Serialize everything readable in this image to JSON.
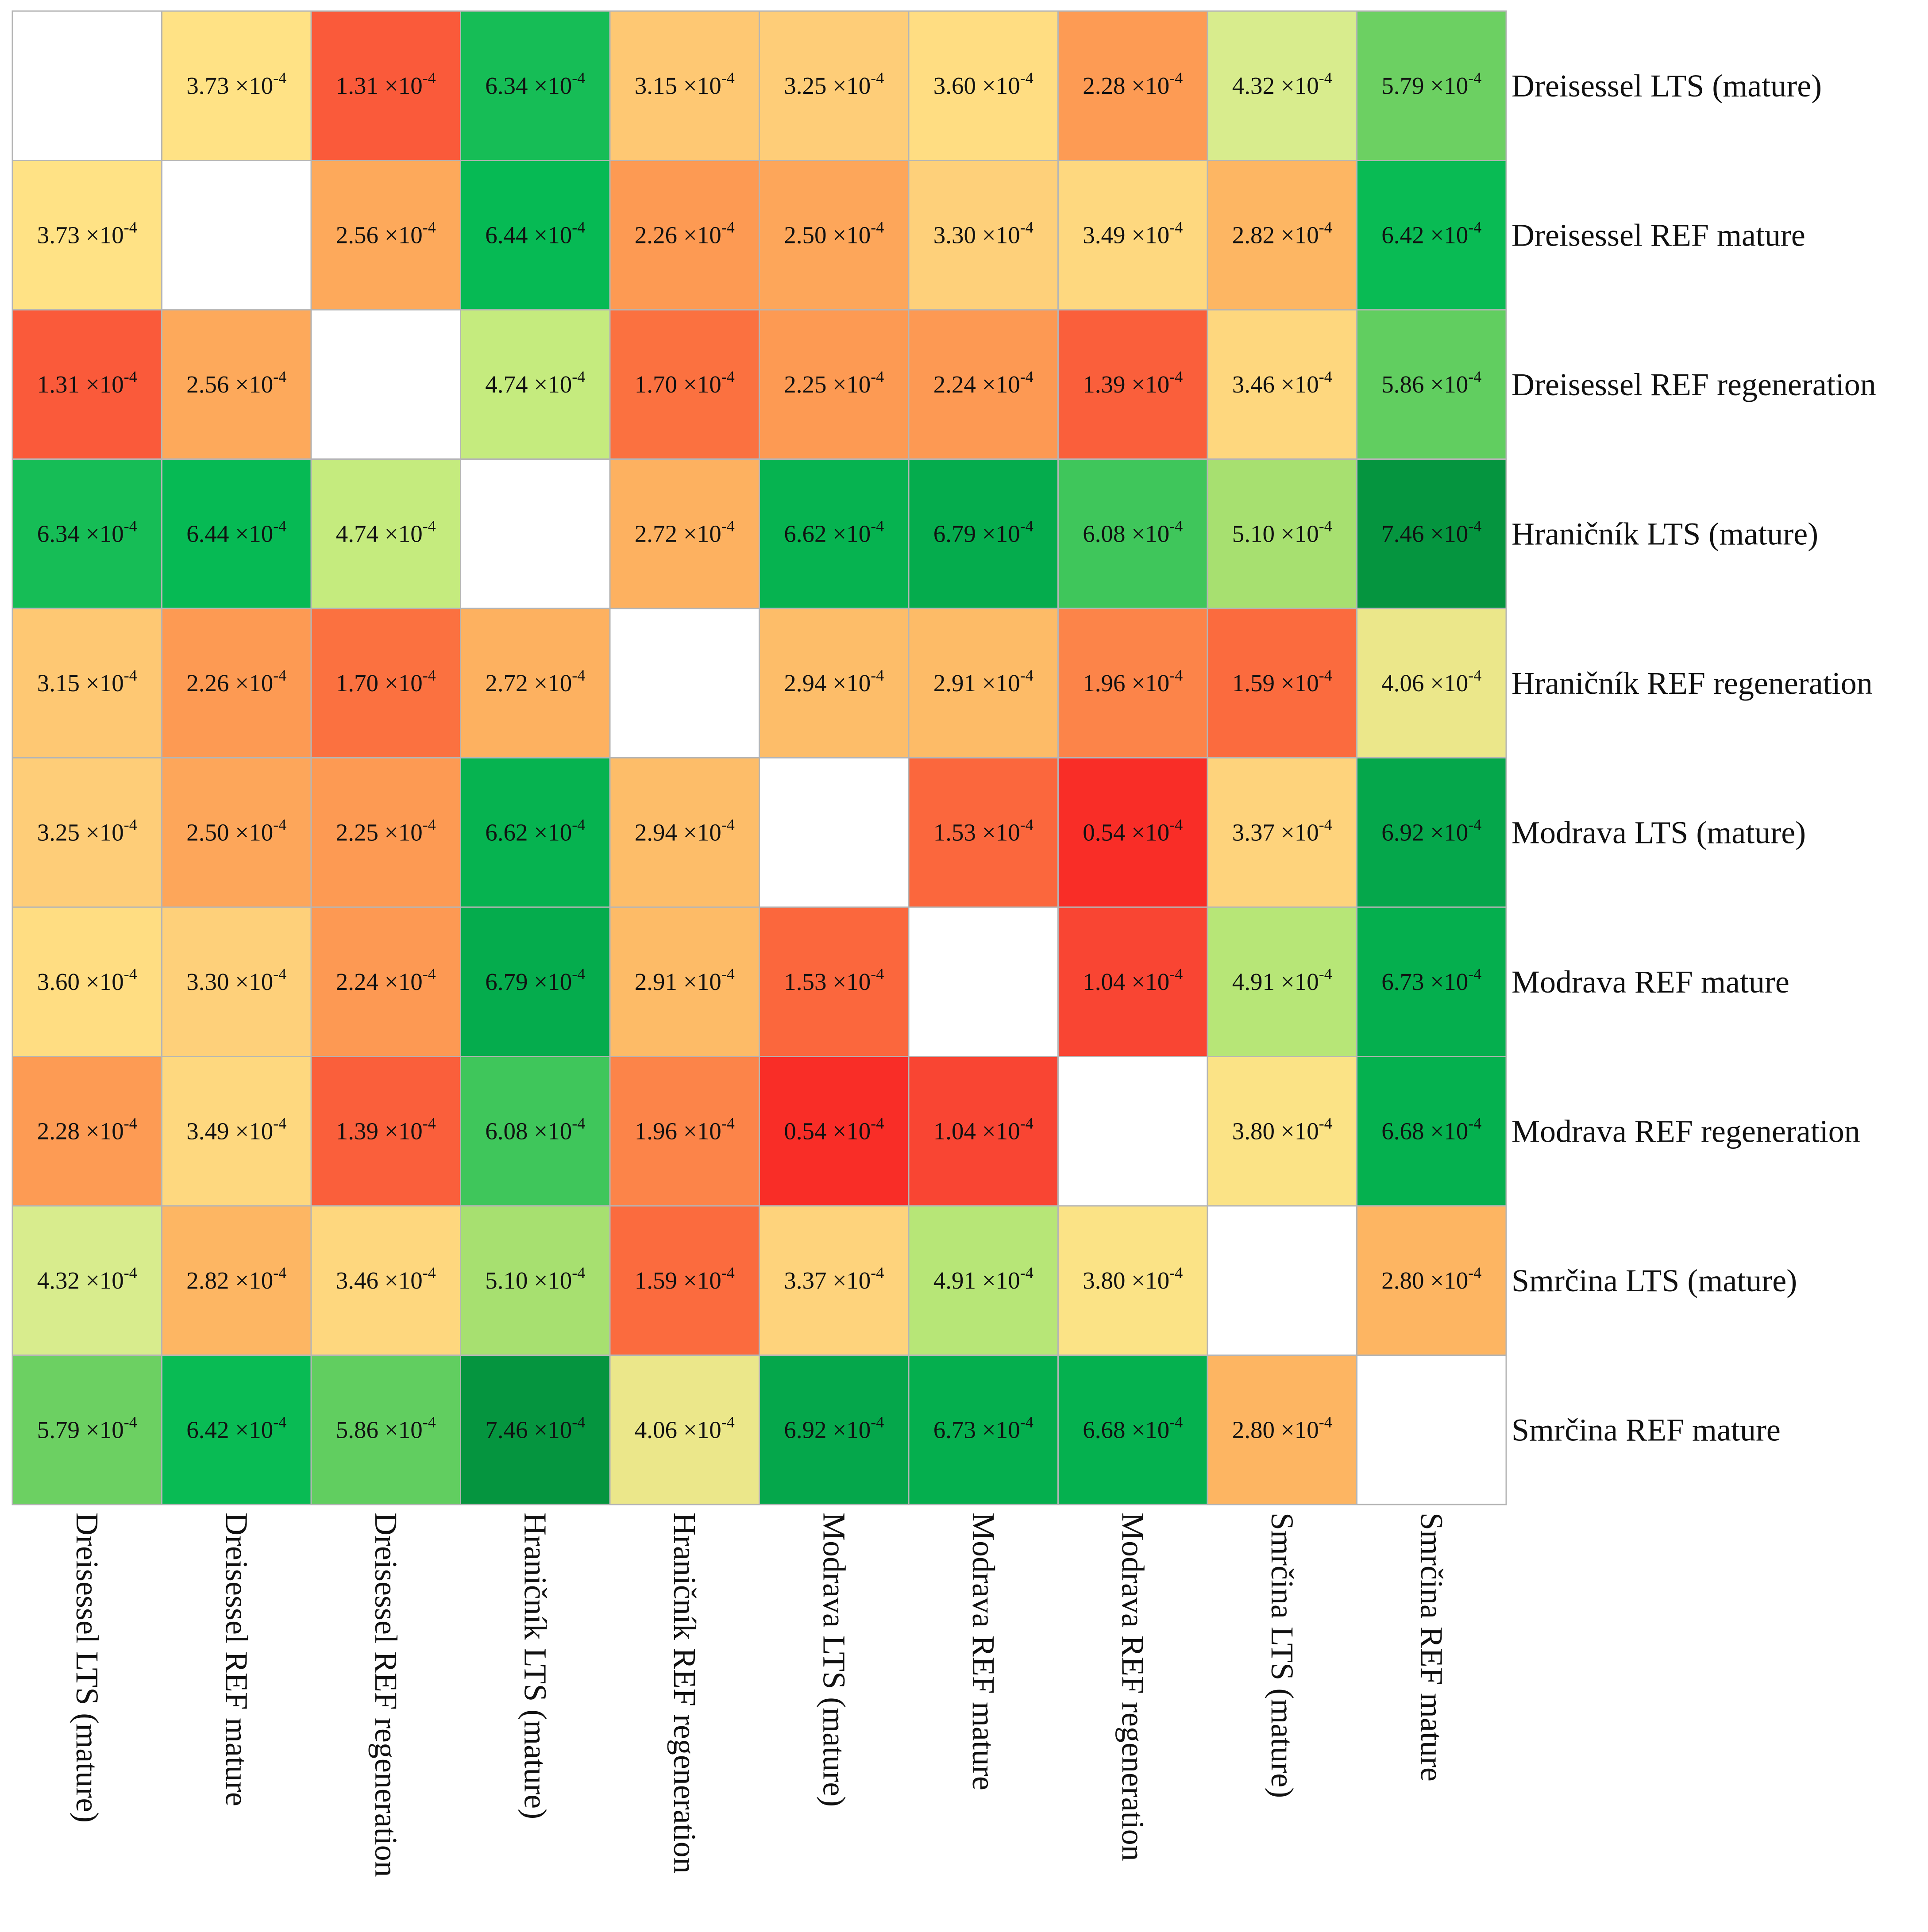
{
  "chart_data": {
    "type": "heatmap",
    "title": "",
    "labels": [
      "Dreisessel LTS (mature)",
      "Dreisessel REF mature",
      "Dreisessel REF regeneration",
      "Hraničník LTS (mature)",
      "Hraničník REF regeneration",
      "Modrava LTS (mature)",
      "Modrava REF mature",
      "Modrava REF regeneration",
      "Smrčina LTS (mature)",
      "Smrčina REF mature"
    ],
    "value_unit": "×10⁻⁴",
    "cell_unit_prefix": "×10",
    "cell_unit_exponent": "-4",
    "values": [
      [
        null,
        3.73,
        1.31,
        6.34,
        3.15,
        3.25,
        3.6,
        2.28,
        4.32,
        5.79
      ],
      [
        3.73,
        null,
        2.56,
        6.44,
        2.26,
        2.5,
        3.3,
        3.49,
        2.82,
        6.42
      ],
      [
        1.31,
        2.56,
        null,
        4.74,
        1.7,
        2.25,
        2.24,
        1.39,
        3.46,
        5.86
      ],
      [
        6.34,
        6.44,
        4.74,
        null,
        2.72,
        6.62,
        6.79,
        6.08,
        5.1,
        7.46
      ],
      [
        3.15,
        2.26,
        1.7,
        2.72,
        null,
        2.94,
        2.91,
        1.96,
        1.59,
        4.06
      ],
      [
        3.25,
        2.5,
        2.25,
        6.62,
        2.94,
        null,
        1.53,
        0.54,
        3.37,
        6.92
      ],
      [
        3.6,
        3.3,
        2.24,
        6.79,
        2.91,
        1.53,
        null,
        1.04,
        4.91,
        6.73
      ],
      [
        2.28,
        3.49,
        1.39,
        6.08,
        1.96,
        0.54,
        1.04,
        null,
        3.8,
        6.68
      ],
      [
        4.32,
        2.82,
        3.46,
        5.1,
        1.59,
        3.37,
        4.91,
        3.8,
        null,
        2.8
      ],
      [
        5.79,
        6.42,
        5.86,
        7.46,
        4.06,
        6.92,
        6.73,
        6.68,
        2.8,
        null
      ]
    ],
    "color_scale": {
      "min": 0.54,
      "max": 7.46,
      "stops": [
        {
          "v": 0.54,
          "color": "#f92d27"
        },
        {
          "v": 1.04,
          "color": "#f94533"
        },
        {
          "v": 1.31,
          "color": "#fa5a3a"
        },
        {
          "v": 1.7,
          "color": "#fb7140"
        },
        {
          "v": 2.25,
          "color": "#fd9a53"
        },
        {
          "v": 2.8,
          "color": "#fdb562"
        },
        {
          "v": 3.3,
          "color": "#fed07a"
        },
        {
          "v": 3.73,
          "color": "#ffe285"
        },
        {
          "v": 4.06,
          "color": "#ebe78a"
        },
        {
          "v": 4.32,
          "color": "#d8ec8d"
        },
        {
          "v": 4.74,
          "color": "#c5eb7e"
        },
        {
          "v": 5.1,
          "color": "#a7e070"
        },
        {
          "v": 5.79,
          "color": "#6cd062"
        },
        {
          "v": 6.08,
          "color": "#3fc65b"
        },
        {
          "v": 6.44,
          "color": "#06ba54"
        },
        {
          "v": 6.9,
          "color": "#05a84b"
        },
        {
          "v": 7.46,
          "color": "#05953f"
        }
      ],
      "diagonal_color": "#ffffff",
      "grid_color": "#b5b5b5"
    },
    "row_label_position": "right",
    "column_label_position": "bottom",
    "column_label_rotation": "vertical (90° clockwise)"
  }
}
